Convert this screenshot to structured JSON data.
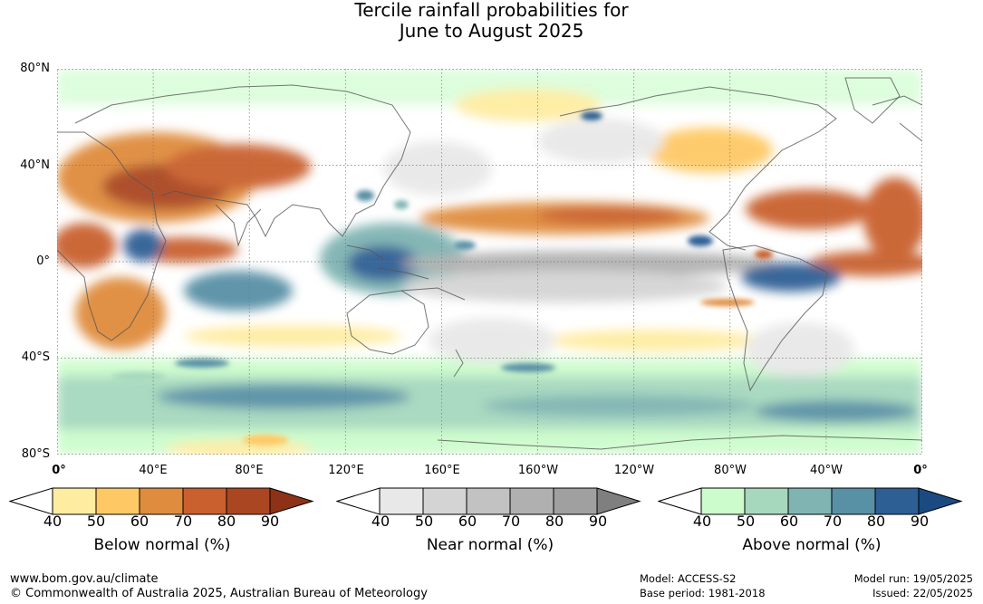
{
  "title": {
    "line1": "Tercile rainfall probabilities for",
    "line2": "June to August 2025"
  },
  "map": {
    "lat_labels": [
      "80°N",
      "40°N",
      "0°",
      "40°S",
      "80°S"
    ],
    "lon_labels": [
      "0°",
      "40°E",
      "80°E",
      "120°E",
      "160°E",
      "160°W",
      "120°W",
      "80°W",
      "40°W",
      "0°"
    ]
  },
  "colorbars": [
    {
      "caption": "Below normal (%)",
      "ticks": [
        "40",
        "50",
        "60",
        "70",
        "80",
        "90"
      ],
      "colors": [
        "#ffffff",
        "#feeca0",
        "#fec965",
        "#df8c3e",
        "#c9602e",
        "#aa4722",
        "#8e3217"
      ]
    },
    {
      "caption": "Near normal (%)",
      "ticks": [
        "40",
        "50",
        "60",
        "70",
        "80",
        "90"
      ],
      "colors": [
        "#ffffff",
        "#e8e8e8",
        "#d4d4d4",
        "#c2c2c2",
        "#b0b0b0",
        "#a0a0a0",
        "#7f7f7f"
      ]
    },
    {
      "caption": "Above normal (%)",
      "ticks": [
        "40",
        "50",
        "60",
        "70",
        "80",
        "90"
      ],
      "colors": [
        "#ffffff",
        "#ccfccc",
        "#a6d8be",
        "#7fb4b2",
        "#5890a6",
        "#2d5e94",
        "#1b4a82"
      ]
    }
  ],
  "footer": {
    "website": "www.bom.gov.au/climate",
    "copyright": "© Commonwealth of Australia 2025, Australian Bureau of Meteorology",
    "model": "Model: ACCESS-S2",
    "base_period": "Base period: 1981-2018",
    "model_run": "Model run: 19/05/2025",
    "issued": "Issued: 22/05/2025"
  }
}
